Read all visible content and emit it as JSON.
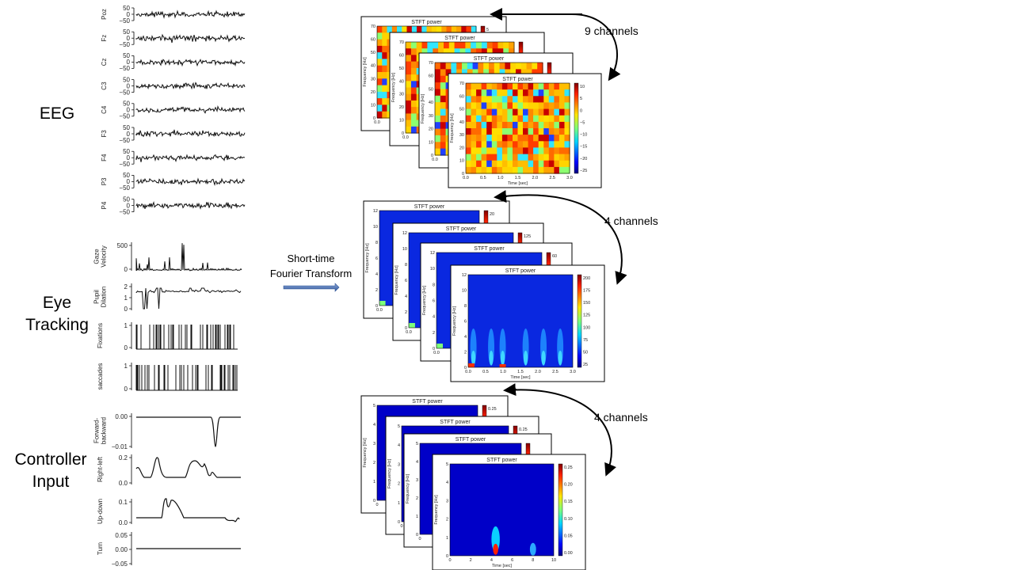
{
  "section_labels": {
    "eeg": "EEG",
    "eye_tracking_line1": "Eye",
    "eye_tracking_line2": "Tracking",
    "controller_line1": "Controller",
    "controller_line2": "Input"
  },
  "transform_label_line1": "Short-time",
  "transform_label_line2": "Fourier Transform",
  "channel_counts": {
    "eeg": "9 channels",
    "eye": "4 channels",
    "controller": "4 channels"
  },
  "eeg_channels": [
    "Poz",
    "Fz",
    "Cz",
    "C3",
    "C4",
    "F3",
    "F4",
    "P3",
    "P4"
  ],
  "eeg_ticks": [
    "50",
    "0",
    "−50"
  ],
  "eye_channels": [
    {
      "label_lines": [
        "Gaze",
        "Velocity"
      ],
      "ticks": [
        "500",
        "0"
      ]
    },
    {
      "label_lines": [
        "Pupil",
        "Dilation"
      ],
      "ticks": [
        "2",
        "1",
        "0"
      ]
    },
    {
      "label_lines": [
        "Fixations"
      ],
      "ticks": [
        "1",
        "0"
      ]
    },
    {
      "label_lines": [
        "saccades"
      ],
      "ticks": [
        "1",
        "0"
      ]
    }
  ],
  "controller_channels": [
    {
      "label_lines": [
        "Forward-",
        "backward"
      ],
      "ticks": [
        "0.00",
        "−0.01"
      ]
    },
    {
      "label_lines": [
        "Right-left"
      ],
      "ticks": [
        "0.2",
        "0.0"
      ]
    },
    {
      "label_lines": [
        "Up-down"
      ],
      "ticks": [
        "0.1",
        "0.0"
      ]
    },
    {
      "label_lines": [
        "Turn"
      ],
      "ticks": [
        "0.05",
        "0.00",
        "−0.05"
      ]
    }
  ],
  "stft": {
    "title": "STFT power",
    "xlabel": "Time [sec]",
    "ylabel": "Frequency [Hz]",
    "eeg": {
      "y_ticks": [
        "0",
        "10",
        "20",
        "30",
        "40",
        "50",
        "60",
        "70"
      ],
      "x_ticks": [
        "0.0",
        "0.5",
        "1.0",
        "1.5",
        "2.0",
        "2.5",
        "3.0"
      ],
      "colorbar_ticks": [
        "10",
        "5",
        "0",
        "−5",
        "−10",
        "−15",
        "−20",
        "−25"
      ],
      "back_colorbar_tick": "5",
      "back_x_tick": "0.0"
    },
    "eye": {
      "y_ticks": [
        "0",
        "2",
        "4",
        "6",
        "8",
        "10",
        "12"
      ],
      "x_ticks": [
        "0.0",
        "0.5",
        "1.0",
        "1.5",
        "2.0",
        "2.5",
        "3.0"
      ],
      "colorbar_ticks": [
        "200",
        "175",
        "150",
        "125",
        "100",
        "75",
        "50",
        "25"
      ],
      "back_colorbar_ticks": [
        "20",
        "125",
        "60"
      ],
      "back_x_tick": "0.0"
    },
    "controller": {
      "y_ticks": [
        "0",
        "1",
        "2",
        "3",
        "4",
        "5"
      ],
      "x_ticks": [
        "0",
        "2",
        "4",
        "6",
        "8",
        "10"
      ],
      "colorbar_ticks": [
        "0.25",
        "0.20",
        "0.15",
        "0.10",
        "0.05",
        "0.00"
      ],
      "back_colorbar_ticks": [
        "0.25",
        "0.25"
      ],
      "back_x_tick": "0"
    }
  }
}
